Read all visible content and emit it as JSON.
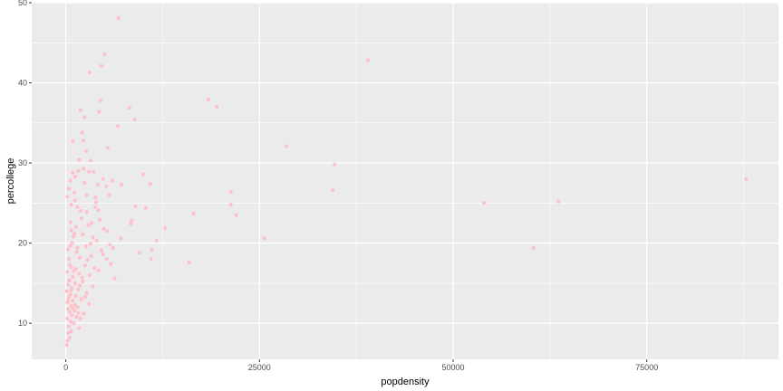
{
  "chart_data": {
    "type": "scatter",
    "xlabel": "popdensity",
    "ylabel": "percollege",
    "xlim": [
      -4400,
      92000
    ],
    "ylim": [
      5.5,
      50
    ],
    "x_ticks": [
      0,
      25000,
      50000,
      75000
    ],
    "x_tick_labels": [
      "0",
      "25000",
      "50000",
      "75000"
    ],
    "y_ticks": [
      10,
      20,
      30,
      40,
      50
    ],
    "y_tick_labels": [
      "10",
      "20",
      "30",
      "40",
      "50"
    ],
    "grid": true,
    "legend": "none",
    "colors": {
      "point": "#ffc0cb",
      "panel": "#ebebeb",
      "grid": "#ffffff"
    },
    "points": [
      [
        6800,
        48.1
      ],
      [
        5000,
        43.6
      ],
      [
        39000,
        42.8
      ],
      [
        4600,
        42.1
      ],
      [
        3100,
        41.3
      ],
      [
        18400,
        37.9
      ],
      [
        4500,
        37.8
      ],
      [
        19500,
        37.0
      ],
      [
        8200,
        36.9
      ],
      [
        4300,
        36.4
      ],
      [
        1900,
        36.6
      ],
      [
        2400,
        35.7
      ],
      [
        8900,
        35.4
      ],
      [
        6700,
        34.6
      ],
      [
        2100,
        33.8
      ],
      [
        2300,
        32.8
      ],
      [
        900,
        32.7
      ],
      [
        28500,
        32.1
      ],
      [
        5400,
        31.9
      ],
      [
        2600,
        31.5
      ],
      [
        1700,
        30.4
      ],
      [
        3200,
        30.3
      ],
      [
        34700,
        29.8
      ],
      [
        2300,
        29.3
      ],
      [
        3600,
        28.9
      ],
      [
        3000,
        28.9
      ],
      [
        900,
        28.8
      ],
      [
        1200,
        28.3
      ],
      [
        10000,
        28.6
      ],
      [
        87800,
        28.0
      ],
      [
        600,
        27.8
      ],
      [
        4800,
        28.0
      ],
      [
        6000,
        27.8
      ],
      [
        4100,
        27.3
      ],
      [
        7200,
        27.3
      ],
      [
        10900,
        27.4
      ],
      [
        5200,
        27.1
      ],
      [
        400,
        26.8
      ],
      [
        34500,
        26.6
      ],
      [
        21300,
        26.4
      ],
      [
        5600,
        26.0
      ],
      [
        2700,
        26.0
      ],
      [
        200,
        25.8
      ],
      [
        3800,
        25.7
      ],
      [
        63600,
        25.2
      ],
      [
        54000,
        25.0
      ],
      [
        1200,
        25.3
      ],
      [
        21300,
        24.8
      ],
      [
        700,
        24.8
      ],
      [
        9000,
        24.6
      ],
      [
        10300,
        24.4
      ],
      [
        3800,
        24.5
      ],
      [
        1900,
        24.0
      ],
      [
        2700,
        23.9
      ],
      [
        16500,
        23.7
      ],
      [
        22000,
        23.5
      ],
      [
        8500,
        22.8
      ],
      [
        4400,
        22.9
      ],
      [
        600,
        22.6
      ],
      [
        3300,
        22.5
      ],
      [
        8400,
        22.4
      ],
      [
        1300,
        22.0
      ],
      [
        12800,
        21.9
      ],
      [
        5300,
        21.5
      ],
      [
        700,
        21.6
      ],
      [
        2200,
        21.1
      ],
      [
        1100,
        21.2
      ],
      [
        11700,
        20.3
      ],
      [
        25600,
        20.6
      ],
      [
        7100,
        20.6
      ],
      [
        4000,
        20.3
      ],
      [
        800,
        20.0
      ],
      [
        5700,
        19.8
      ],
      [
        2600,
        19.6
      ],
      [
        1500,
        19.4
      ],
      [
        60400,
        19.4
      ],
      [
        300,
        19.2
      ],
      [
        11100,
        19.2
      ],
      [
        9500,
        18.8
      ],
      [
        4800,
        18.6
      ],
      [
        3300,
        18.4
      ],
      [
        1800,
        18.2
      ],
      [
        400,
        18.0
      ],
      [
        11000,
        18.0
      ],
      [
        15900,
        17.6
      ],
      [
        5800,
        17.4
      ],
      [
        2500,
        17.2
      ],
      [
        700,
        17.0
      ],
      [
        1300,
        16.8
      ],
      [
        4200,
        16.6
      ],
      [
        200,
        16.4
      ],
      [
        1700,
        16.2
      ],
      [
        3100,
        16.0
      ],
      [
        900,
        15.8
      ],
      [
        6300,
        15.6
      ],
      [
        500,
        15.4
      ],
      [
        2200,
        15.2
      ],
      [
        1200,
        15.0
      ],
      [
        300,
        14.8
      ],
      [
        3500,
        14.6
      ],
      [
        800,
        14.4
      ],
      [
        1600,
        14.2
      ],
      [
        100,
        14.0
      ],
      [
        2700,
        13.8
      ],
      [
        600,
        13.6
      ],
      [
        1300,
        13.4
      ],
      [
        400,
        13.2
      ],
      [
        2000,
        13.0
      ],
      [
        900,
        12.8
      ],
      [
        200,
        12.6
      ],
      [
        3000,
        12.4
      ],
      [
        700,
        12.2
      ],
      [
        1500,
        12.0
      ],
      [
        300,
        11.8
      ],
      [
        1100,
        11.6
      ],
      [
        500,
        11.4
      ],
      [
        2300,
        11.2
      ],
      [
        800,
        11.0
      ],
      [
        1400,
        10.8
      ],
      [
        200,
        10.6
      ],
      [
        600,
        10.2
      ],
      [
        1000,
        10.0
      ],
      [
        400,
        9.6
      ],
      [
        1700,
        9.4
      ],
      [
        700,
        9.0
      ],
      [
        300,
        8.8
      ],
      [
        500,
        8.2
      ],
      [
        200,
        7.8
      ],
      [
        100,
        7.3
      ],
      [
        1900,
        10.6
      ],
      [
        1000,
        20.8
      ],
      [
        600,
        19.7
      ],
      [
        1400,
        18.9
      ],
      [
        2800,
        17.9
      ],
      [
        500,
        17.3
      ],
      [
        3700,
        16.9
      ],
      [
        1000,
        16.5
      ],
      [
        2100,
        15.7
      ],
      [
        400,
        15.3
      ],
      [
        1800,
        14.7
      ],
      [
        700,
        14.1
      ],
      [
        2500,
        13.3
      ],
      [
        300,
        12.9
      ],
      [
        1200,
        12.3
      ],
      [
        1600,
        11.3
      ],
      [
        900,
        11.9
      ],
      [
        4600,
        19.1
      ],
      [
        3500,
        20.7
      ],
      [
        4900,
        21.8
      ],
      [
        2900,
        22.2
      ],
      [
        2000,
        23.1
      ],
      [
        4200,
        24.1
      ],
      [
        1500,
        24.5
      ],
      [
        3900,
        25.1
      ],
      [
        1100,
        26.3
      ],
      [
        2400,
        27.5
      ],
      [
        1600,
        29.0
      ],
      [
        5300,
        18.0
      ],
      [
        6100,
        19.4
      ],
      [
        3200,
        19.9
      ]
    ]
  }
}
